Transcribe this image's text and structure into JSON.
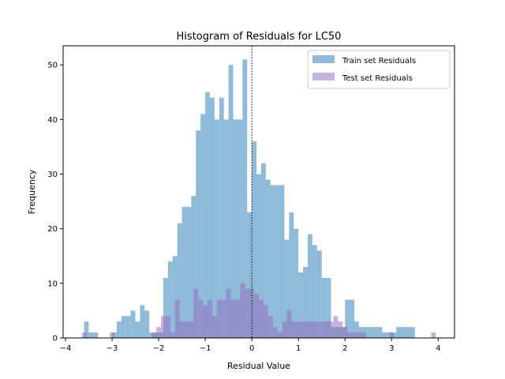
{
  "chart_data": {
    "type": "bar",
    "title": "Histogram of Residuals for LC50",
    "xlabel": "Residual Value",
    "ylabel": "Frequency",
    "xlim": [
      -4.05,
      4.35
    ],
    "ylim": [
      0,
      53.5
    ],
    "xticks": [
      -4,
      -3,
      -2,
      -1,
      0,
      1,
      2,
      3,
      4
    ],
    "yticks": [
      0,
      10,
      20,
      30,
      40,
      50
    ],
    "bin_width": 0.1,
    "reference_line": {
      "x": 0,
      "style": "dashed",
      "color": "#000000"
    },
    "legend": {
      "placement": "top-right"
    },
    "series": [
      {
        "name": "Train set Residuals",
        "color": "#1f77b4",
        "alpha": 0.5,
        "bins": [
          {
            "x0": -3.6,
            "x1": -3.5,
            "count": 3
          },
          {
            "x0": -3.5,
            "x1": -3.4,
            "count": 1
          },
          {
            "x0": -3.4,
            "x1": -3.3,
            "count": 1
          },
          {
            "x0": -3.0,
            "x1": -2.9,
            "count": 1
          },
          {
            "x0": -2.9,
            "x1": -2.8,
            "count": 3
          },
          {
            "x0": -2.8,
            "x1": -2.7,
            "count": 4
          },
          {
            "x0": -2.7,
            "x1": -2.6,
            "count": 4
          },
          {
            "x0": -2.6,
            "x1": -2.5,
            "count": 5
          },
          {
            "x0": -2.5,
            "x1": -2.4,
            "count": 3
          },
          {
            "x0": -2.4,
            "x1": -2.3,
            "count": 6
          },
          {
            "x0": -2.3,
            "x1": -2.2,
            "count": 5
          },
          {
            "x0": -2.2,
            "x1": -2.1,
            "count": 1
          },
          {
            "x0": -2.1,
            "x1": -2.0,
            "count": 1
          },
          {
            "x0": -2.0,
            "x1": -1.9,
            "count": 1
          },
          {
            "x0": -1.9,
            "x1": -1.8,
            "count": 11
          },
          {
            "x0": -1.8,
            "x1": -1.7,
            "count": 14
          },
          {
            "x0": -1.7,
            "x1": -1.6,
            "count": 15
          },
          {
            "x0": -1.6,
            "x1": -1.5,
            "count": 21
          },
          {
            "x0": -1.5,
            "x1": -1.4,
            "count": 24
          },
          {
            "x0": -1.4,
            "x1": -1.3,
            "count": 24
          },
          {
            "x0": -1.3,
            "x1": -1.2,
            "count": 26
          },
          {
            "x0": -1.2,
            "x1": -1.1,
            "count": 38
          },
          {
            "x0": -1.1,
            "x1": -1.0,
            "count": 41
          },
          {
            "x0": -1.0,
            "x1": -0.9,
            "count": 45
          },
          {
            "x0": -0.9,
            "x1": -0.8,
            "count": 44
          },
          {
            "x0": -0.8,
            "x1": -0.7,
            "count": 40
          },
          {
            "x0": -0.7,
            "x1": -0.6,
            "count": 44
          },
          {
            "x0": -0.6,
            "x1": -0.5,
            "count": 40
          },
          {
            "x0": -0.5,
            "x1": -0.4,
            "count": 50
          },
          {
            "x0": -0.4,
            "x1": -0.3,
            "count": 40
          },
          {
            "x0": -0.3,
            "x1": -0.2,
            "count": 40
          },
          {
            "x0": -0.2,
            "x1": -0.1,
            "count": 51
          },
          {
            "x0": -0.1,
            "x1": 0.0,
            "count": 23
          },
          {
            "x0": 0.0,
            "x1": 0.1,
            "count": 36
          },
          {
            "x0": 0.1,
            "x1": 0.2,
            "count": 30
          },
          {
            "x0": 0.2,
            "x1": 0.3,
            "count": 32
          },
          {
            "x0": 0.3,
            "x1": 0.4,
            "count": 29
          },
          {
            "x0": 0.4,
            "x1": 0.5,
            "count": 28
          },
          {
            "x0": 0.5,
            "x1": 0.6,
            "count": 28
          },
          {
            "x0": 0.6,
            "x1": 0.7,
            "count": 28
          },
          {
            "x0": 0.7,
            "x1": 0.8,
            "count": 18
          },
          {
            "x0": 0.8,
            "x1": 0.9,
            "count": 23
          },
          {
            "x0": 0.9,
            "x1": 1.0,
            "count": 20
          },
          {
            "x0": 1.0,
            "x1": 1.1,
            "count": 12
          },
          {
            "x0": 1.1,
            "x1": 1.2,
            "count": 13
          },
          {
            "x0": 1.2,
            "x1": 1.3,
            "count": 19
          },
          {
            "x0": 1.3,
            "x1": 1.4,
            "count": 17
          },
          {
            "x0": 1.4,
            "x1": 1.5,
            "count": 16
          },
          {
            "x0": 1.5,
            "x1": 1.6,
            "count": 11
          },
          {
            "x0": 1.6,
            "x1": 1.7,
            "count": 11
          },
          {
            "x0": 1.7,
            "x1": 1.8,
            "count": 2
          },
          {
            "x0": 1.8,
            "x1": 1.9,
            "count": 2
          },
          {
            "x0": 1.9,
            "x1": 2.0,
            "count": 2
          },
          {
            "x0": 2.0,
            "x1": 2.1,
            "count": 7
          },
          {
            "x0": 2.1,
            "x1": 2.2,
            "count": 7
          },
          {
            "x0": 2.2,
            "x1": 2.3,
            "count": 3
          },
          {
            "x0": 2.3,
            "x1": 2.4,
            "count": 2
          },
          {
            "x0": 2.4,
            "x1": 2.5,
            "count": 2
          },
          {
            "x0": 2.5,
            "x1": 2.6,
            "count": 2
          },
          {
            "x0": 2.6,
            "x1": 2.7,
            "count": 2
          },
          {
            "x0": 2.7,
            "x1": 2.8,
            "count": 2
          },
          {
            "x0": 2.8,
            "x1": 2.9,
            "count": 1
          },
          {
            "x0": 2.9,
            "x1": 3.0,
            "count": 1
          },
          {
            "x0": 3.0,
            "x1": 3.1,
            "count": 1
          },
          {
            "x0": 3.1,
            "x1": 3.2,
            "count": 2
          },
          {
            "x0": 3.2,
            "x1": 3.3,
            "count": 2
          },
          {
            "x0": 3.3,
            "x1": 3.4,
            "count": 2
          },
          {
            "x0": 3.4,
            "x1": 3.5,
            "count": 2
          }
        ]
      },
      {
        "name": "Test set Residuals",
        "color": "#9467bd",
        "alpha": 0.5,
        "bins": [
          {
            "x0": -3.65,
            "x1": -3.55,
            "count": 1
          },
          {
            "x0": -3.05,
            "x1": -2.95,
            "count": 1
          },
          {
            "x0": -2.15,
            "x1": -2.05,
            "count": 1
          },
          {
            "x0": -2.05,
            "x1": -1.95,
            "count": 2
          },
          {
            "x0": -1.95,
            "x1": -1.85,
            "count": 4
          },
          {
            "x0": -1.85,
            "x1": -1.75,
            "count": 4
          },
          {
            "x0": -1.75,
            "x1": -1.65,
            "count": 1
          },
          {
            "x0": -1.65,
            "x1": -1.55,
            "count": 7
          },
          {
            "x0": -1.55,
            "x1": -1.45,
            "count": 3
          },
          {
            "x0": -1.45,
            "x1": -1.35,
            "count": 3
          },
          {
            "x0": -1.35,
            "x1": -1.25,
            "count": 3
          },
          {
            "x0": -1.25,
            "x1": -1.15,
            "count": 9
          },
          {
            "x0": -1.15,
            "x1": -1.05,
            "count": 7
          },
          {
            "x0": -1.05,
            "x1": -0.95,
            "count": 6
          },
          {
            "x0": -0.95,
            "x1": -0.85,
            "count": 7
          },
          {
            "x0": -0.85,
            "x1": -0.75,
            "count": 4
          },
          {
            "x0": -0.75,
            "x1": -0.65,
            "count": 7
          },
          {
            "x0": -0.65,
            "x1": -0.55,
            "count": 7
          },
          {
            "x0": -0.55,
            "x1": -0.45,
            "count": 9
          },
          {
            "x0": -0.45,
            "x1": -0.35,
            "count": 7
          },
          {
            "x0": -0.35,
            "x1": -0.25,
            "count": 7
          },
          {
            "x0": -0.25,
            "x1": -0.15,
            "count": 10
          },
          {
            "x0": -0.15,
            "x1": -0.05,
            "count": 9
          },
          {
            "x0": -0.05,
            "x1": 0.05,
            "count": 9
          },
          {
            "x0": 0.05,
            "x1": 0.15,
            "count": 8
          },
          {
            "x0": 0.15,
            "x1": 0.25,
            "count": 7
          },
          {
            "x0": 0.25,
            "x1": 0.35,
            "count": 6
          },
          {
            "x0": 0.35,
            "x1": 0.45,
            "count": 4
          },
          {
            "x0": 0.45,
            "x1": 0.55,
            "count": 2
          },
          {
            "x0": 0.55,
            "x1": 0.65,
            "count": 1
          },
          {
            "x0": 0.65,
            "x1": 0.75,
            "count": 3
          },
          {
            "x0": 0.75,
            "x1": 0.85,
            "count": 5
          },
          {
            "x0": 0.85,
            "x1": 0.95,
            "count": 3
          },
          {
            "x0": 0.95,
            "x1": 1.05,
            "count": 3
          },
          {
            "x0": 1.05,
            "x1": 1.15,
            "count": 3
          },
          {
            "x0": 1.15,
            "x1": 1.25,
            "count": 3
          },
          {
            "x0": 1.25,
            "x1": 1.35,
            "count": 3
          },
          {
            "x0": 1.35,
            "x1": 1.45,
            "count": 3
          },
          {
            "x0": 1.45,
            "x1": 1.55,
            "count": 3
          },
          {
            "x0": 1.55,
            "x1": 1.65,
            "count": 3
          },
          {
            "x0": 1.65,
            "x1": 1.75,
            "count": 3
          },
          {
            "x0": 1.75,
            "x1": 1.85,
            "count": 4
          },
          {
            "x0": 1.85,
            "x1": 1.95,
            "count": 3
          },
          {
            "x0": 1.95,
            "x1": 2.05,
            "count": 2
          },
          {
            "x0": 2.05,
            "x1": 2.15,
            "count": 1
          },
          {
            "x0": 2.15,
            "x1": 2.25,
            "count": 1
          },
          {
            "x0": 2.25,
            "x1": 2.35,
            "count": 1
          },
          {
            "x0": 2.35,
            "x1": 2.45,
            "count": 1
          },
          {
            "x0": 2.95,
            "x1": 3.05,
            "count": 1
          },
          {
            "x0": 3.85,
            "x1": 3.95,
            "count": 1
          }
        ]
      }
    ]
  }
}
